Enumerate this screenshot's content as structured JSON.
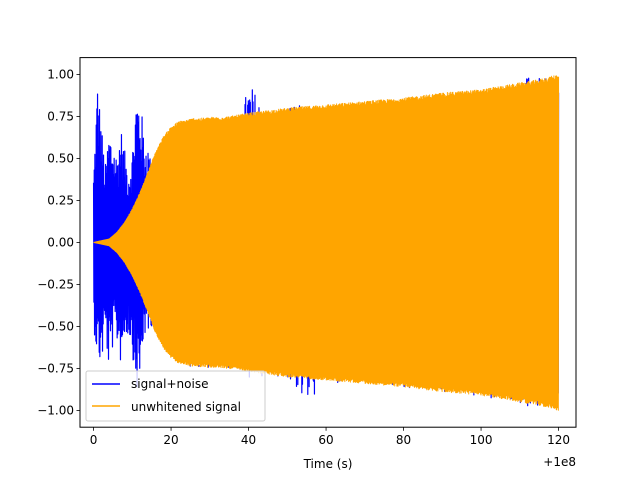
{
  "chart_data": {
    "type": "line",
    "title": "",
    "xlabel": "Time (s)",
    "ylabel": "",
    "x_offset_label": "+1e8",
    "xlim": [
      -3.5,
      124.5
    ],
    "ylim": [
      -1.1,
      1.1
    ],
    "xticks": [
      0,
      20,
      40,
      60,
      80,
      100,
      120
    ],
    "xtick_labels": [
      "0",
      "20",
      "40",
      "60",
      "80",
      "100",
      "120"
    ],
    "yticks": [
      -1.0,
      -0.75,
      -0.5,
      -0.25,
      0.0,
      0.25,
      0.5,
      0.75,
      1.0
    ],
    "ytick_labels": [
      "−1.00",
      "−0.75",
      "−0.50",
      "−0.25",
      "0.00",
      "0.25",
      "0.50",
      "0.75",
      "1.00"
    ],
    "grid": false,
    "legend_position": "lower-left",
    "series": [
      {
        "name": "signal+noise",
        "color": "#0000ff",
        "x": [
          0,
          1,
          2,
          3,
          4,
          5,
          6,
          7,
          8,
          9,
          10,
          11,
          12,
          13,
          14,
          15,
          16,
          17,
          18,
          20,
          25,
          30,
          38,
          40,
          45,
          50,
          52,
          55,
          60,
          62,
          70,
          80,
          90,
          100,
          110,
          113,
          116,
          120
        ],
        "upper": [
          0.42,
          0.98,
          0.72,
          0.45,
          0.68,
          0.62,
          0.52,
          0.7,
          0.55,
          0.45,
          0.55,
          0.9,
          0.87,
          0.65,
          0.6,
          0.45,
          0.4,
          0.35,
          0.4,
          0.55,
          0.72,
          0.73,
          0.74,
          0.96,
          0.78,
          0.79,
          0.82,
          0.82,
          0.78,
          0.82,
          0.82,
          0.85,
          0.88,
          0.91,
          0.95,
          1.0,
          0.97,
          0.99
        ],
        "lower": [
          -0.5,
          -0.7,
          -0.75,
          -0.55,
          -0.78,
          -0.62,
          -0.6,
          -0.72,
          -0.58,
          -0.55,
          -0.65,
          -0.9,
          -0.87,
          -0.55,
          -0.6,
          -0.5,
          -0.45,
          -0.4,
          -0.45,
          -0.62,
          -0.74,
          -0.75,
          -0.76,
          -0.83,
          -0.79,
          -0.8,
          -0.86,
          -0.98,
          -0.82,
          -0.86,
          -0.84,
          -0.87,
          -0.9,
          -0.93,
          -0.96,
          -0.98,
          -0.99,
          -1.0
        ]
      },
      {
        "name": "unwhitened signal",
        "color": "#ffa500",
        "x": [
          0,
          2,
          4,
          6,
          8,
          10,
          12,
          14,
          16,
          18,
          20,
          22,
          24,
          26,
          28,
          30,
          35,
          40,
          50,
          60,
          70,
          80,
          90,
          100,
          110,
          115,
          120
        ],
        "upper": [
          0.0,
          0.01,
          0.02,
          0.06,
          0.12,
          0.2,
          0.3,
          0.42,
          0.54,
          0.63,
          0.69,
          0.72,
          0.73,
          0.74,
          0.74,
          0.745,
          0.75,
          0.77,
          0.8,
          0.82,
          0.84,
          0.86,
          0.89,
          0.91,
          0.95,
          0.97,
          1.0
        ],
        "lower": [
          0.0,
          -0.01,
          -0.02,
          -0.06,
          -0.12,
          -0.2,
          -0.3,
          -0.42,
          -0.54,
          -0.63,
          -0.69,
          -0.72,
          -0.73,
          -0.74,
          -0.74,
          -0.745,
          -0.75,
          -0.77,
          -0.8,
          -0.82,
          -0.84,
          -0.86,
          -0.89,
          -0.91,
          -0.95,
          -0.97,
          -1.0
        ]
      }
    ]
  }
}
